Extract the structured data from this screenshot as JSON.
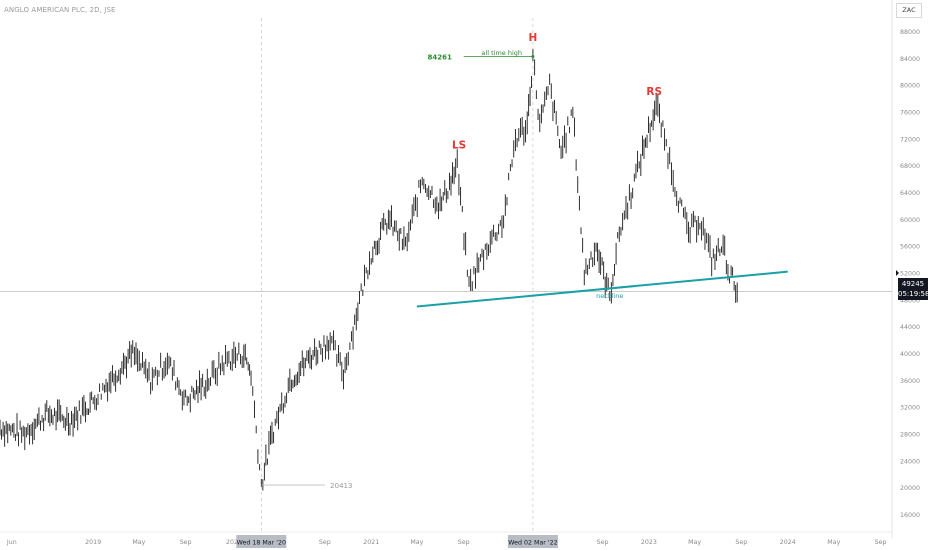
{
  "title": "ANGLO AMERICAN PLC, 2D, JSE",
  "currency": "ZAC",
  "price_tag": {
    "price": "49245",
    "countdown": "05:19:58"
  },
  "colors": {
    "candle": "#1a1a1a",
    "neckline": "#1aa1a8",
    "pattern_label": "#e53935",
    "ath": "#2e8b2e",
    "guide": "#9a9a9a"
  },
  "chart_data": {
    "type": "line",
    "title": "ANGLO AMERICAN PLC, 2D, JSE",
    "xlabel": "",
    "ylabel": "",
    "x_start": "2018-05",
    "x_end": "2024-10",
    "ylim": [
      14000,
      90000
    ],
    "y_ticks": [
      16000,
      20000,
      24000,
      28000,
      32000,
      36000,
      40000,
      44000,
      48000,
      52000,
      56000,
      60000,
      64000,
      68000,
      72000,
      76000,
      80000,
      84000,
      88000
    ],
    "x_ticks": [
      {
        "label": "Jun",
        "date": "2018-06"
      },
      {
        "label": "2019",
        "date": "2019-01"
      },
      {
        "label": "May",
        "date": "2019-05"
      },
      {
        "label": "Sep",
        "date": "2019-09"
      },
      {
        "label": "202",
        "date": "2020-01"
      },
      {
        "label": "Sep",
        "date": "2020-09"
      },
      {
        "label": "2021",
        "date": "2021-01"
      },
      {
        "label": "May",
        "date": "2021-05"
      },
      {
        "label": "Sep",
        "date": "2021-09"
      },
      {
        "label": "2",
        "date": "2022-01"
      },
      {
        "label": "Sep",
        "date": "2022-09"
      },
      {
        "label": "2023",
        "date": "2023-01"
      },
      {
        "label": "May",
        "date": "2023-05"
      },
      {
        "label": "Sep",
        "date": "2023-09"
      },
      {
        "label": "2024",
        "date": "2024-01"
      },
      {
        "label": "May",
        "date": "2024-05"
      },
      {
        "label": "Sep",
        "date": "2024-09"
      }
    ],
    "date_markers": [
      {
        "label": "Wed 18 Mar '20",
        "date": "2020-03-18"
      },
      {
        "label": "Wed 02 Mar '22",
        "date": "2022-03-02"
      }
    ],
    "series": [
      {
        "points": [
          [
            "2018-05-01",
            29000
          ],
          [
            "2018-07-01",
            28000
          ],
          [
            "2018-09-01",
            31000
          ],
          [
            "2018-11-01",
            30000
          ],
          [
            "2019-01-01",
            33000
          ],
          [
            "2019-03-01",
            37000
          ],
          [
            "2019-04-15",
            40000
          ],
          [
            "2019-06-01",
            36000
          ],
          [
            "2019-07-15",
            39000
          ],
          [
            "2019-09-01",
            33000
          ],
          [
            "2019-11-01",
            36000
          ],
          [
            "2019-12-15",
            39000
          ],
          [
            "2020-02-01",
            40000
          ],
          [
            "2020-02-20",
            37000
          ],
          [
            "2020-03-18",
            20413
          ],
          [
            "2020-04-15",
            28000
          ],
          [
            "2020-06-01",
            36000
          ],
          [
            "2020-08-01",
            40000
          ],
          [
            "2020-09-15",
            42000
          ],
          [
            "2020-10-20",
            37000
          ],
          [
            "2020-12-01",
            48000
          ],
          [
            "2021-01-01",
            55000
          ],
          [
            "2021-02-15",
            60000
          ],
          [
            "2021-04-01",
            56000
          ],
          [
            "2021-05-15",
            66000
          ],
          [
            "2021-07-01",
            62000
          ],
          [
            "2021-08-15",
            68000
          ],
          [
            "2021-09-15",
            50000
          ],
          [
            "2021-11-01",
            56000
          ],
          [
            "2021-12-15",
            60000
          ],
          [
            "2022-01-15",
            72000
          ],
          [
            "2022-02-15",
            74000
          ],
          [
            "2022-03-02",
            84261
          ],
          [
            "2022-03-20",
            74000
          ],
          [
            "2022-04-15",
            80000
          ],
          [
            "2022-05-15",
            70000
          ],
          [
            "2022-06-15",
            76000
          ],
          [
            "2022-07-15",
            52000
          ],
          [
            "2022-08-15",
            56000
          ],
          [
            "2022-09-20",
            48500
          ],
          [
            "2022-10-15",
            58000
          ],
          [
            "2022-11-15",
            64000
          ],
          [
            "2022-12-15",
            70000
          ],
          [
            "2023-01-20",
            77000
          ],
          [
            "2023-02-20",
            70000
          ],
          [
            "2023-03-15",
            64000
          ],
          [
            "2023-04-15",
            58000
          ],
          [
            "2023-05-15",
            60000
          ],
          [
            "2023-06-15",
            54000
          ],
          [
            "2023-07-15",
            56000
          ],
          [
            "2023-08-01",
            52000
          ],
          [
            "2023-08-25",
            49245
          ]
        ]
      }
    ],
    "annotations": [
      {
        "text": "H",
        "date": "2022-03-02",
        "value": 87000
      },
      {
        "text": "LS",
        "date": "2021-08-20",
        "value": 71000
      },
      {
        "text": "RS",
        "date": "2023-01-15",
        "value": 79000
      },
      {
        "text": "all time high",
        "date": "2021-12-10",
        "value": 84900
      },
      {
        "text": "84261",
        "date": "2021-08-01",
        "value": 84261
      },
      {
        "text": "20413",
        "date": "2020-09-15",
        "value": 20413
      },
      {
        "text": "neckline",
        "date": "2022-09-20",
        "value": 48700
      }
    ],
    "neckline": {
      "from": [
        "2021-05-01",
        47000
      ],
      "to": [
        "2024-01-01",
        52200
      ]
    },
    "ath_line": {
      "from": [
        "2021-09-01",
        84261
      ],
      "to": [
        "2022-03-02",
        84261
      ]
    },
    "low_line": {
      "from": [
        "2020-03-18",
        20413
      ],
      "to": [
        "2020-09-01",
        20413
      ]
    },
    "current_price": 49245
  }
}
